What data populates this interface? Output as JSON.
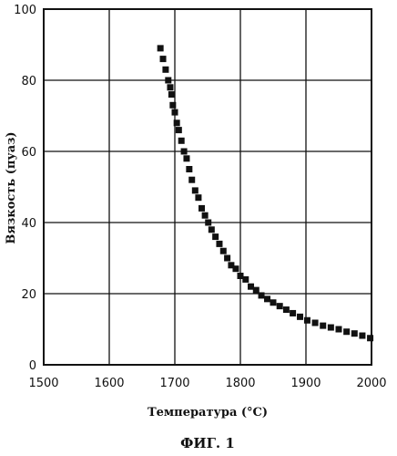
{
  "chart_data": {
    "type": "scatter",
    "title": "",
    "xlabel": "Температура (°C)",
    "ylabel": "Вязкость (пуаз)",
    "caption": "ФИГ. 1",
    "xlim": [
      1500,
      2000
    ],
    "ylim": [
      0,
      100
    ],
    "xticks": [
      1500,
      1600,
      1700,
      1800,
      1900,
      2000
    ],
    "yticks": [
      0,
      20,
      40,
      60,
      80,
      100
    ],
    "grid": true,
    "marker": "square",
    "color": "#111111",
    "series": [
      {
        "x": [
          1678,
          1682,
          1686,
          1690,
          1693,
          1695,
          1697,
          1700,
          1703,
          1706,
          1710,
          1714,
          1718,
          1722,
          1726,
          1731,
          1736,
          1741,
          1746,
          1751,
          1756,
          1762,
          1768,
          1774,
          1780,
          1786,
          1793,
          1800,
          1808,
          1816,
          1824,
          1832,
          1841,
          1850,
          1860,
          1870,
          1880,
          1891,
          1902,
          1914,
          1926,
          1938,
          1950,
          1962,
          1974,
          1986,
          1998
        ],
        "y": [
          89,
          86,
          83,
          80,
          78,
          76,
          73,
          71,
          68,
          66,
          63,
          60,
          58,
          55,
          52,
          49,
          47,
          44,
          42,
          40,
          38,
          36,
          34,
          32,
          30,
          28,
          27,
          25,
          24,
          22,
          21,
          19.5,
          18.5,
          17.5,
          16.5,
          15.5,
          14.5,
          13.5,
          12.5,
          11.8,
          11,
          10.5,
          10,
          9.3,
          8.8,
          8.2,
          7.5
        ]
      }
    ]
  }
}
